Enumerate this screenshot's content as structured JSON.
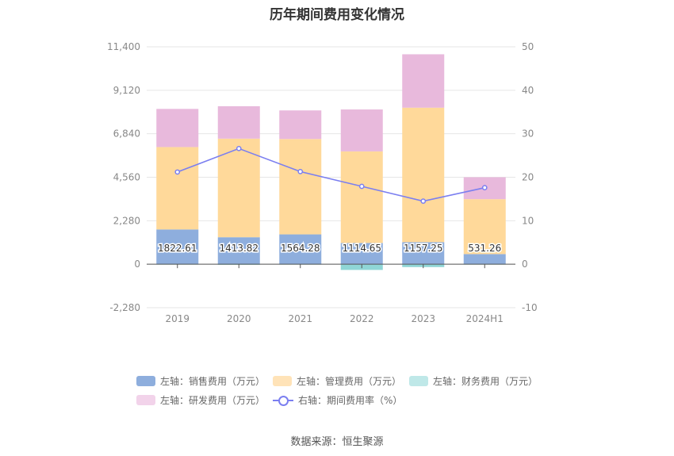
{
  "chart_data": {
    "type": "bar",
    "title": "历年期间费用变化情况",
    "categories": [
      "2019",
      "2020",
      "2021",
      "2022",
      "2023",
      "2024H1"
    ],
    "stacked": true,
    "left_axis": {
      "ylim": [
        -2280,
        11400
      ],
      "ticks": [
        "11,400",
        "9,120",
        "6,840",
        "4,560",
        "2,280",
        "0",
        "-2,280"
      ],
      "tick_values": [
        11400,
        9120,
        6840,
        4560,
        2280,
        0,
        -2280
      ]
    },
    "right_axis": {
      "ylim": [
        -10,
        50
      ],
      "ticks": [
        "50",
        "40",
        "30",
        "20",
        "10",
        "0",
        "-10"
      ],
      "tick_values": [
        50,
        40,
        30,
        20,
        10,
        0,
        -10
      ]
    },
    "series": [
      {
        "name": "左轴：销售费用（万元）",
        "axis": "left",
        "kind": "bar",
        "color": "#8eaedd",
        "values": [
          1822.61,
          1413.82,
          1564.28,
          1114.65,
          1157.25,
          531.26
        ],
        "labels": [
          "1822.61",
          "1413.82",
          "1564.28",
          "1114.65",
          "1157.25",
          "531.26"
        ]
      },
      {
        "name": "左轴：管理费用（万元）",
        "axis": "left",
        "kind": "bar",
        "color": "#ffd99a",
        "values": [
          4320,
          5170,
          5000,
          4800,
          7050,
          2880
        ]
      },
      {
        "name": "左轴：财务费用（万元）",
        "axis": "left",
        "kind": "bar",
        "color": "#8fd6d6",
        "values": [
          -20,
          -30,
          -20,
          -300,
          -150,
          -20
        ]
      },
      {
        "name": "左轴：研发费用（万元）",
        "axis": "left",
        "kind": "bar",
        "color": "#e8b9dc",
        "values": [
          2000,
          1700,
          1500,
          2200,
          2800,
          1150
        ]
      },
      {
        "name": "右轴：期间费用率（%）",
        "axis": "right",
        "kind": "line",
        "color": "#7b7ff0",
        "values": [
          21.2,
          26.6,
          21.3,
          17.9,
          14.5,
          17.6
        ]
      }
    ],
    "grid": true,
    "legend_position": "bottom"
  },
  "footer": {
    "source": "数据来源：恒生聚源"
  }
}
